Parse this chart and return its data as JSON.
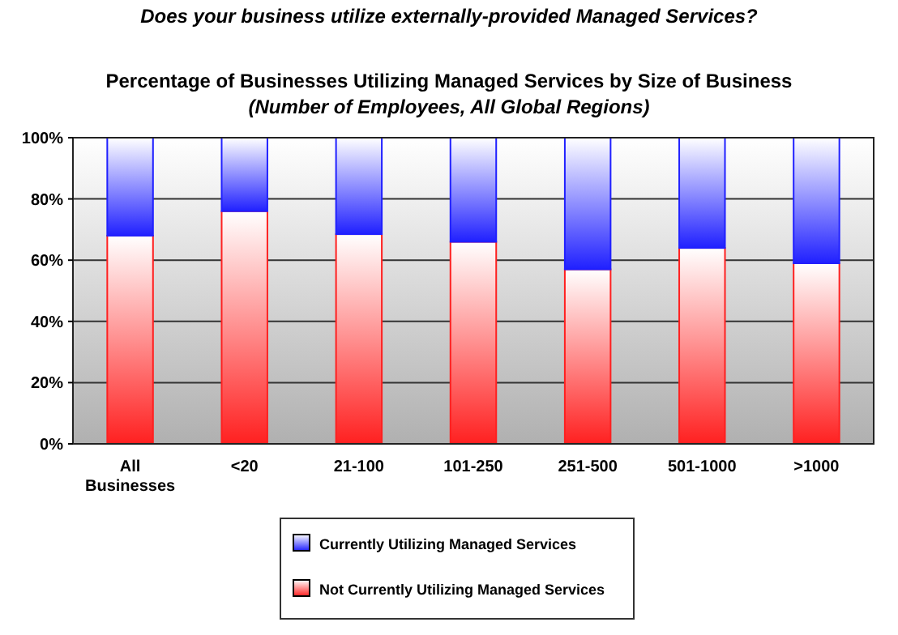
{
  "chart_data": {
    "type": "bar",
    "title": "Does your business utilize externally-provided Managed Services?",
    "subtitle": "Percentage of Businesses Utilizing Managed Services by Size of Business",
    "annotations": [
      "(Number of Employees, All Global Regions)"
    ],
    "categories": [
      "All Businesses",
      "<20",
      "21-100",
      "101-250",
      "251-500",
      "501-1000",
      ">1000"
    ],
    "stacked": true,
    "series": [
      {
        "name": "Not Currently Utilizing Managed Services",
        "color": "#ff2020",
        "values": [
          68,
          76,
          68.5,
          66,
          57,
          64,
          59
        ]
      },
      {
        "name": "Currently Utilizing Managed Services",
        "color": "#2020ff",
        "values": [
          32,
          24,
          31.5,
          34,
          43,
          36,
          41
        ]
      }
    ],
    "ylim": [
      0,
      100
    ],
    "yticks": [
      {
        "value": 0,
        "label": "0%"
      },
      {
        "value": 20,
        "label": "20%"
      },
      {
        "value": 40,
        "label": "40%"
      },
      {
        "value": 60,
        "label": "60%"
      },
      {
        "value": 80,
        "label": "80%"
      },
      {
        "value": 100,
        "label": "100%"
      }
    ],
    "grid": "y",
    "legend": "bottom"
  }
}
